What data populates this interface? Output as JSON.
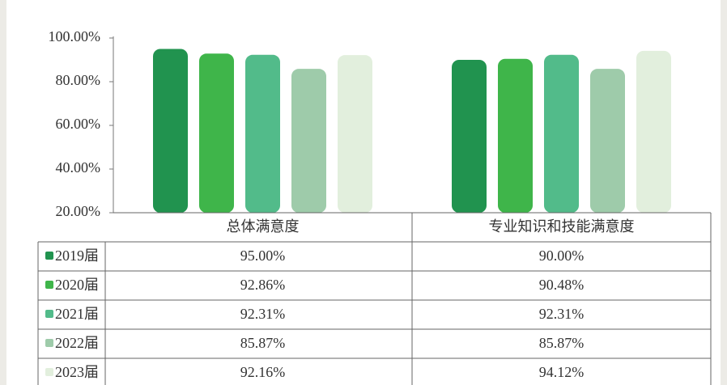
{
  "chart_data": {
    "type": "bar",
    "categories": [
      "总体满意度",
      "专业知识和技能满意度"
    ],
    "series": [
      {
        "name": "2019届",
        "color": "#21934f",
        "values": [
          95.0,
          90.0
        ],
        "value_labels": [
          "95.00%",
          "90.00%"
        ]
      },
      {
        "name": "2020届",
        "color": "#3fb54a",
        "values": [
          92.86,
          90.48
        ],
        "value_labels": [
          "92.86%",
          "90.48%"
        ]
      },
      {
        "name": "2021届",
        "color": "#52bb8a",
        "values": [
          92.31,
          92.31
        ],
        "value_labels": [
          "92.31%",
          "92.31%"
        ]
      },
      {
        "name": "2022届",
        "color": "#9ecbaa",
        "values": [
          85.87,
          85.87
        ],
        "value_labels": [
          "85.87%",
          "85.87%"
        ]
      },
      {
        "name": "2023届",
        "color": "#e2efdd",
        "values": [
          92.16,
          94.12
        ],
        "value_labels": [
          "92.16%",
          "94.12%"
        ]
      }
    ],
    "ylim": [
      20,
      100
    ],
    "yticks": [
      {
        "value": 20,
        "label": "20.00%"
      },
      {
        "value": 40,
        "label": "40.00%"
      },
      {
        "value": 60,
        "label": "60.00%"
      },
      {
        "value": 80,
        "label": "80.00%"
      },
      {
        "value": 100,
        "label": "100.00%"
      }
    ]
  }
}
